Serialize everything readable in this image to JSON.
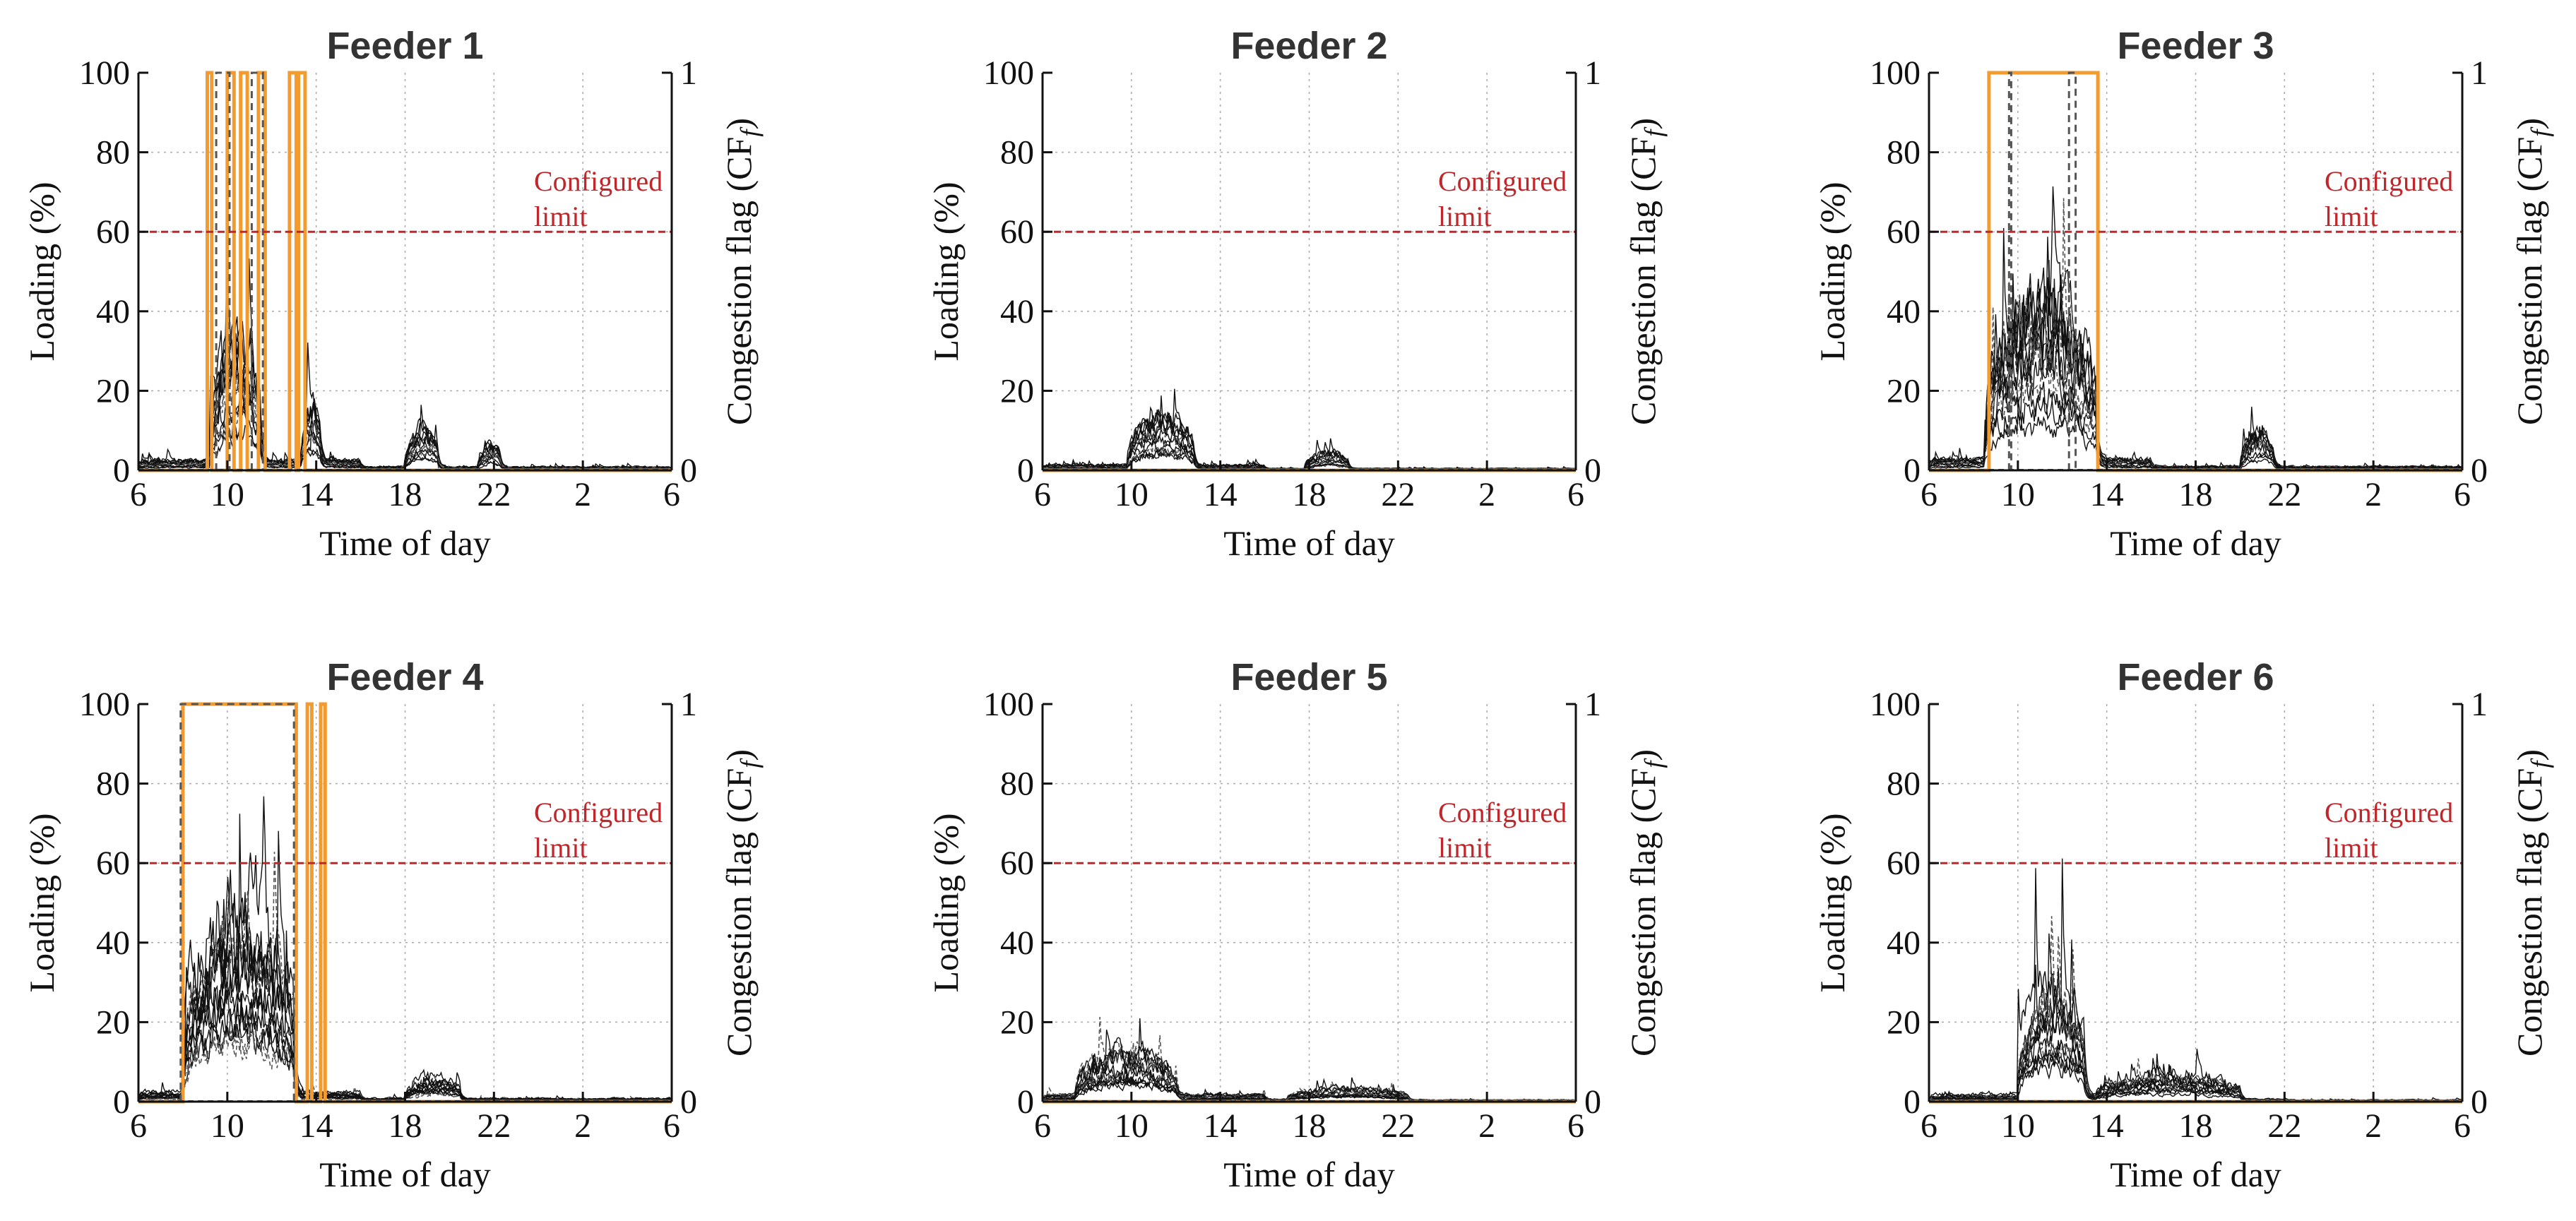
{
  "colors": {
    "load": "#111111",
    "load_dashed": "#555555",
    "flag": "#f39b2f",
    "limit": "#c0262a",
    "grid": "#aaaaaa"
  },
  "chart_data": [
    {
      "type": "line",
      "title": "Feeder 1",
      "xlabel": "Time of day",
      "ylabel": "Loading (%)",
      "y2label": "Congestion flag (CF",
      "y2label_sub": "f",
      "y2label_close": ")",
      "x_ticks": [
        "6",
        "10",
        "14",
        "18",
        "22",
        "2",
        "6"
      ],
      "y_ticks": [
        "0",
        "20",
        "40",
        "60",
        "80",
        "100"
      ],
      "y2_ticks": [
        "0",
        "1"
      ],
      "ylim": [
        0,
        100
      ],
      "xlim_hours": [
        0,
        24
      ],
      "limit": {
        "value": 60,
        "label_line1": "Configured",
        "label_line2": "limit"
      },
      "load_peak_windows": [
        {
          "start": 3.2,
          "end": 5.5,
          "peak": 38
        },
        {
          "start": 7.3,
          "end": 8.2,
          "peak": 20
        },
        {
          "start": 12.0,
          "end": 13.5,
          "peak": 12
        },
        {
          "start": 15.3,
          "end": 16.3,
          "peak": 8
        }
      ],
      "load_base_level": 3,
      "load_low_base": 1,
      "flag_on_windows": [
        [
          3.1,
          3.3
        ],
        [
          4.0,
          4.3
        ],
        [
          4.6,
          4.9
        ],
        [
          5.4,
          5.7
        ],
        [
          6.8,
          7.1
        ],
        [
          7.2,
          7.5
        ]
      ],
      "flag_dashed_windows": [
        [
          3.5,
          4.1
        ],
        [
          5.1,
          5.6
        ]
      ]
    },
    {
      "type": "line",
      "title": "Feeder 2",
      "xlabel": "Time of day",
      "ylabel": "Loading (%)",
      "y2label": "Congestion flag (CF",
      "y2label_sub": "f",
      "y2label_close": ")",
      "x_ticks": [
        "6",
        "10",
        "14",
        "18",
        "22",
        "2",
        "6"
      ],
      "y_ticks": [
        "0",
        "20",
        "40",
        "60",
        "80",
        "100"
      ],
      "y2_ticks": [
        "0",
        "1"
      ],
      "ylim": [
        0,
        100
      ],
      "xlim_hours": [
        0,
        24
      ],
      "limit": {
        "value": 60,
        "label_line1": "Configured",
        "label_line2": "limit"
      },
      "load_peak_windows": [
        {
          "start": 3.8,
          "end": 6.8,
          "peak": 15
        },
        {
          "start": 11.8,
          "end": 13.8,
          "peak": 5
        }
      ],
      "load_base_level": 1.5,
      "load_low_base": 0.5,
      "flag_on_windows": [],
      "flag_dashed_windows": []
    },
    {
      "type": "line",
      "title": "Feeder 3",
      "xlabel": "Time of day",
      "ylabel": "Loading (%)",
      "y2label": "Congestion flag (CF",
      "y2label_sub": "f",
      "y2label_close": ")",
      "x_ticks": [
        "6",
        "10",
        "14",
        "18",
        "22",
        "2",
        "6"
      ],
      "y_ticks": [
        "0",
        "20",
        "40",
        "60",
        "80",
        "100"
      ],
      "y2_ticks": [
        "0",
        "1"
      ],
      "ylim": [
        0,
        100
      ],
      "xlim_hours": [
        0,
        24
      ],
      "limit": {
        "value": 60,
        "label_line1": "Configured",
        "label_line2": "limit"
      },
      "load_peak_windows": [
        {
          "start": 2.5,
          "end": 7.5,
          "peak": 46
        },
        {
          "start": 14.0,
          "end": 15.5,
          "peak": 10
        }
      ],
      "load_base_level": 3,
      "load_low_base": 1,
      "flag_on_windows": [
        [
          2.7,
          7.6
        ]
      ],
      "flag_dashed_windows": [
        [
          3.6,
          3.7
        ],
        [
          6.3,
          6.6
        ]
      ]
    },
    {
      "type": "line",
      "title": "Feeder 4",
      "xlabel": "Time of day",
      "ylabel": "Loading (%)",
      "y2label": "Congestion flag (CF",
      "y2label_sub": "f",
      "y2label_close": ")",
      "x_ticks": [
        "6",
        "10",
        "14",
        "18",
        "22",
        "2",
        "6"
      ],
      "y_ticks": [
        "0",
        "20",
        "40",
        "60",
        "80",
        "100"
      ],
      "y2_ticks": [
        "0",
        "1"
      ],
      "ylim": [
        0,
        100
      ],
      "xlim_hours": [
        0,
        24
      ],
      "limit": {
        "value": 60,
        "label_line1": "Configured",
        "label_line2": "limit"
      },
      "load_peak_windows": [
        {
          "start": 2.0,
          "end": 7.0,
          "peak": 62
        },
        {
          "start": 12.0,
          "end": 14.5,
          "peak": 8
        }
      ],
      "load_base_level": 3,
      "load_low_base": 1,
      "flag_on_windows": [
        [
          2.0,
          7.1
        ],
        [
          7.6,
          7.8
        ],
        [
          8.2,
          8.4
        ]
      ],
      "flag_dashed_windows": [
        [
          1.9,
          7.0
        ]
      ]
    },
    {
      "type": "line",
      "title": "Feeder 5",
      "xlabel": "Time of day",
      "ylabel": "Loading (%)",
      "y2label": "Congestion flag (CF",
      "y2label_sub": "f",
      "y2label_close": ")",
      "x_ticks": [
        "6",
        "10",
        "14",
        "18",
        "22",
        "2",
        "6"
      ],
      "y_ticks": [
        "0",
        "20",
        "40",
        "60",
        "80",
        "100"
      ],
      "y2_ticks": [
        "0",
        "1"
      ],
      "ylim": [
        0,
        100
      ],
      "xlim_hours": [
        0,
        24
      ],
      "limit": {
        "value": 60,
        "label_line1": "Configured",
        "label_line2": "limit"
      },
      "load_peak_windows": [
        {
          "start": 1.5,
          "end": 6.0,
          "peak": 15
        },
        {
          "start": 11.0,
          "end": 16.5,
          "peak": 4
        }
      ],
      "load_base_level": 2,
      "load_low_base": 0.5,
      "flag_on_windows": [],
      "flag_dashed_windows": []
    },
    {
      "type": "line",
      "title": "Feeder 6",
      "xlabel": "Time of day",
      "ylabel": "Loading (%)",
      "y2label": "Congestion flag (CF",
      "y2label_sub": "f",
      "y2label_close": ")",
      "x_ticks": [
        "6",
        "10",
        "14",
        "18",
        "22",
        "2",
        "6"
      ],
      "y_ticks": [
        "0",
        "20",
        "40",
        "60",
        "80",
        "100"
      ],
      "y2_ticks": [
        "0",
        "1"
      ],
      "ylim": [
        0,
        100
      ],
      "xlim_hours": [
        0,
        24
      ],
      "limit": {
        "value": 60,
        "label_line1": "Configured",
        "label_line2": "limit"
      },
      "load_peak_windows": [
        {
          "start": 4.0,
          "end": 7.0,
          "peak": 34
        },
        {
          "start": 7.5,
          "end": 14.0,
          "peak": 8
        }
      ],
      "load_base_level": 2,
      "load_low_base": 0.5,
      "flag_on_windows": [],
      "flag_dashed_windows": []
    }
  ]
}
